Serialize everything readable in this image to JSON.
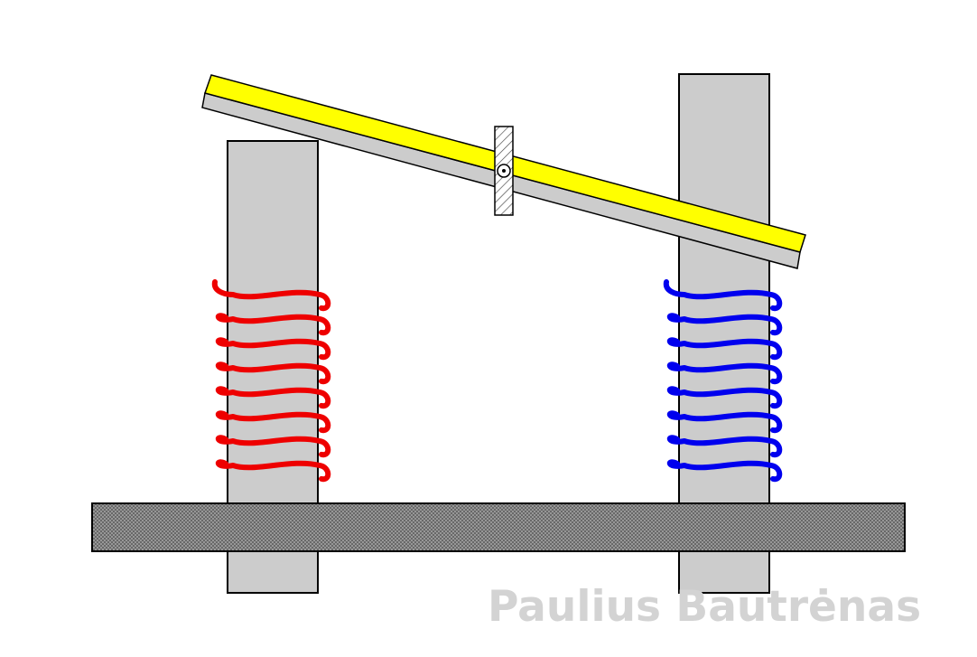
{
  "diagram": {
    "type": "relay-mechanism",
    "colors": {
      "core": "#cccccc",
      "base_plate": "#9a9a9a",
      "armature_top": "#ffff00",
      "armature_bottom": "#cccccc",
      "coil_left": "#ee0000",
      "coil_right": "#0000ee",
      "pivot": "#dddddd"
    },
    "coil_turns": {
      "left": 8,
      "right": 8
    }
  },
  "watermark": {
    "text": "Paulius Bautrėnas"
  }
}
